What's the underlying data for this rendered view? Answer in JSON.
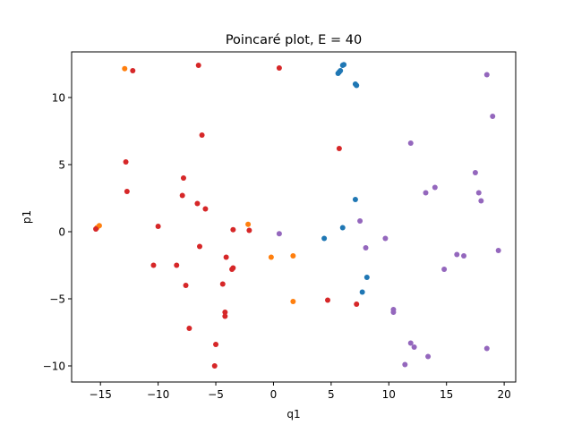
{
  "chart_data": {
    "type": "scatter",
    "title": "Poincaré plot, E = 40",
    "xlabel": "q1",
    "ylabel": "p1",
    "xlim": [
      -17.5,
      21.0
    ],
    "ylim": [
      -11.2,
      13.4
    ],
    "xticks": [
      -15,
      -10,
      -5,
      0,
      5,
      10,
      15,
      20
    ],
    "yticks": [
      -10,
      -5,
      0,
      5,
      10
    ],
    "xtick_labels": [
      "−15",
      "−10",
      "−5",
      "0",
      "5",
      "10",
      "15",
      "20"
    ],
    "ytick_labels": [
      "−10",
      "−5",
      "0",
      "5",
      "10"
    ],
    "grid": false,
    "legend": "none",
    "series": [
      {
        "color": "#1f77b4",
        "points": [
          [
            5.6,
            11.8
          ],
          [
            5.7,
            11.9
          ],
          [
            5.8,
            12.0
          ],
          [
            6.0,
            12.4
          ],
          [
            6.1,
            12.45
          ],
          [
            7.1,
            11.0
          ],
          [
            7.2,
            10.9
          ],
          [
            7.1,
            2.4
          ],
          [
            6.0,
            0.3
          ],
          [
            4.4,
            -0.5
          ],
          [
            8.1,
            -3.4
          ],
          [
            7.7,
            -4.5
          ]
        ]
      },
      {
        "color": "#ff7f0e",
        "points": [
          [
            -12.9,
            12.15
          ],
          [
            -15.1,
            0.45
          ],
          [
            -15.3,
            0.3
          ],
          [
            -2.2,
            0.55
          ],
          [
            -0.2,
            -1.9
          ],
          [
            1.7,
            -1.8
          ],
          [
            1.7,
            -5.2
          ]
        ]
      },
      {
        "color": "#d62728",
        "points": [
          [
            -12.2,
            12.0
          ],
          [
            -6.5,
            12.4
          ],
          [
            0.5,
            12.2
          ],
          [
            -6.2,
            7.2
          ],
          [
            -12.8,
            5.2
          ],
          [
            -12.7,
            3.0
          ],
          [
            -7.8,
            4.0
          ],
          [
            -7.9,
            2.7
          ],
          [
            -6.6,
            2.1
          ],
          [
            -5.9,
            1.7
          ],
          [
            -10.0,
            0.4
          ],
          [
            -15.4,
            0.2
          ],
          [
            -3.5,
            0.15
          ],
          [
            -2.1,
            0.1
          ],
          [
            -6.4,
            -1.1
          ],
          [
            -4.1,
            -1.9
          ],
          [
            -10.4,
            -2.5
          ],
          [
            -8.4,
            -2.5
          ],
          [
            -3.5,
            -2.7
          ],
          [
            -3.6,
            -2.8
          ],
          [
            -7.6,
            -4.0
          ],
          [
            -4.4,
            -3.9
          ],
          [
            -4.2,
            -6.0
          ],
          [
            -4.2,
            -6.3
          ],
          [
            -7.3,
            -7.2
          ],
          [
            -5.0,
            -8.4
          ],
          [
            -5.1,
            -10.0
          ],
          [
            5.7,
            6.2
          ],
          [
            4.7,
            -5.1
          ],
          [
            7.2,
            -5.4
          ]
        ]
      },
      {
        "color": "#9467bd",
        "points": [
          [
            18.5,
            11.7
          ],
          [
            19.0,
            8.6
          ],
          [
            11.9,
            6.6
          ],
          [
            17.5,
            4.4
          ],
          [
            14.0,
            3.3
          ],
          [
            13.2,
            2.9
          ],
          [
            17.8,
            2.9
          ],
          [
            18.0,
            2.3
          ],
          [
            7.5,
            0.8
          ],
          [
            0.5,
            -0.15
          ],
          [
            9.7,
            -0.5
          ],
          [
            8.0,
            -1.2
          ],
          [
            19.5,
            -1.4
          ],
          [
            15.9,
            -1.7
          ],
          [
            16.5,
            -1.8
          ],
          [
            14.8,
            -2.8
          ],
          [
            10.4,
            -5.8
          ],
          [
            10.4,
            -6.0
          ],
          [
            11.9,
            -8.3
          ],
          [
            12.2,
            -8.6
          ],
          [
            18.5,
            -8.7
          ],
          [
            13.4,
            -9.3
          ],
          [
            11.4,
            -9.9
          ]
        ]
      }
    ]
  }
}
